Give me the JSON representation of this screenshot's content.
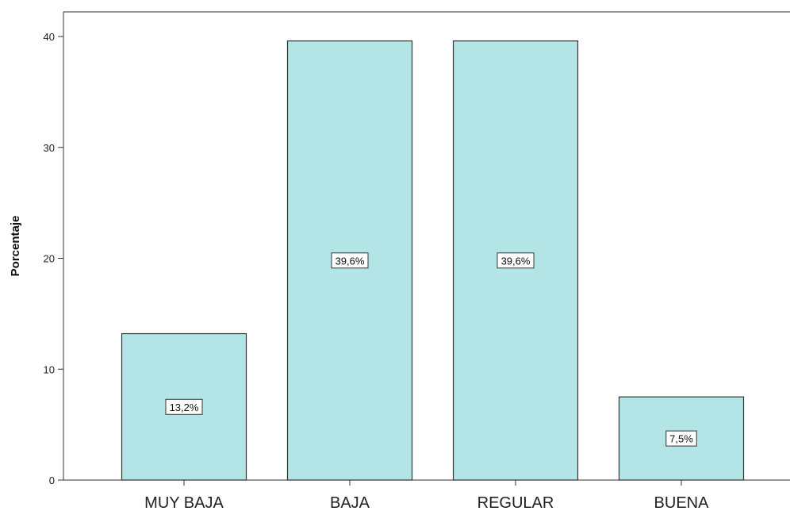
{
  "chart_data": {
    "type": "bar",
    "categories": [
      "MUY BAJA",
      "BAJA",
      "REGULAR",
      "BUENA"
    ],
    "values": [
      13.2,
      39.6,
      39.6,
      7.5
    ],
    "data_labels": [
      "13,2%",
      "39,6%",
      "39,6%",
      "7,5%"
    ],
    "ylabel": "Porcentaje",
    "xlabel": "",
    "ylim": [
      0,
      42
    ],
    "yticks": [
      0,
      10,
      20,
      30,
      40
    ],
    "ytick_labels": [
      "0",
      "10",
      "20",
      "30",
      "40"
    ],
    "grid": false,
    "colors": {
      "bar_fill": "#b3e5e6",
      "bar_stroke": "#333333",
      "label_box_fill": "#ffffff",
      "label_box_stroke": "#333333"
    }
  }
}
